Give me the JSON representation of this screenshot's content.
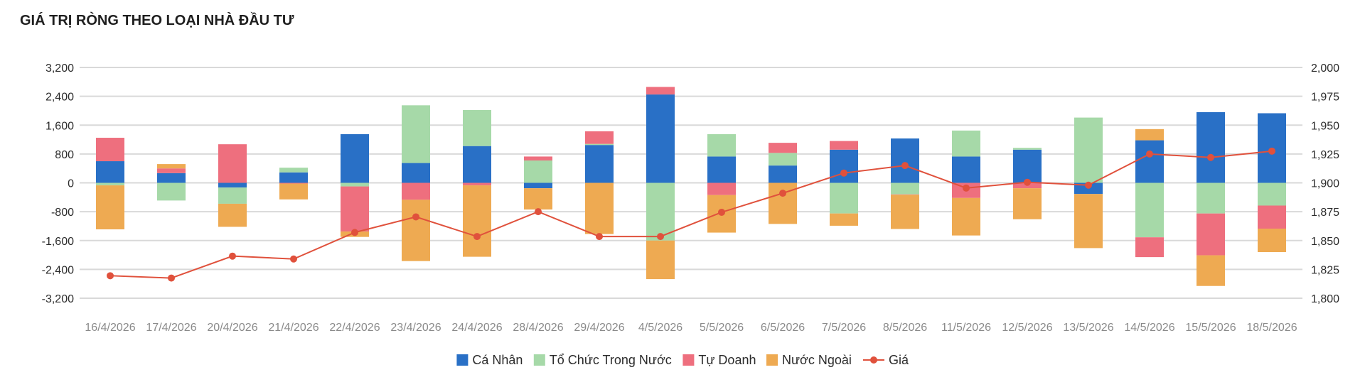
{
  "chart_data": {
    "type": "bar",
    "stacked": true,
    "title": "GIÁ TRỊ RÒNG THEO LOẠI NHÀ ĐẦU TƯ",
    "categories": [
      "16/4/2026",
      "17/4/2026",
      "20/4/2026",
      "21/4/2026",
      "22/4/2026",
      "23/4/2026",
      "24/4/2026",
      "28/4/2026",
      "29/4/2026",
      "4/5/2026",
      "5/5/2026",
      "6/5/2026",
      "7/5/2026",
      "8/5/2026",
      "11/5/2026",
      "12/5/2026",
      "13/5/2026",
      "14/5/2026",
      "15/5/2026",
      "18/5/2026"
    ],
    "y_left": {
      "ylim": [
        -3200,
        3200
      ],
      "ticks": [
        -3200,
        -2400,
        -1600,
        -800,
        0,
        800,
        1600,
        2400,
        3200
      ],
      "tick_labels": [
        "-3,200",
        "-2,400",
        "-1,600",
        "-800",
        "0",
        "800",
        "1,600",
        "2,400",
        "3,200"
      ]
    },
    "y_right": {
      "ylim": [
        1800,
        2000
      ],
      "ticks": [
        1800,
        1825,
        1850,
        1875,
        1900,
        1925,
        1950,
        1975,
        2000
      ],
      "tick_labels": [
        "1,800",
        "1,825",
        "1,850",
        "1,875",
        "1,900",
        "1,925",
        "1,950",
        "1,975",
        "2,000"
      ]
    },
    "grid": true,
    "legend_position": "bottom",
    "series": [
      {
        "name": "Cá Nhân",
        "type": "bar",
        "axis": "left",
        "color": "#2970c6",
        "values": [
          600,
          270,
          -130,
          290,
          1350,
          550,
          1020,
          -150,
          1050,
          2450,
          730,
          480,
          920,
          1230,
          730,
          920,
          -310,
          1180,
          1960,
          1930
        ]
      },
      {
        "name": "Tổ Chức Trong Nước",
        "type": "bar",
        "axis": "left",
        "color": "#a6d9a8",
        "values": [
          -70,
          -490,
          -450,
          130,
          -100,
          1600,
          1000,
          620,
          30,
          -1600,
          620,
          350,
          -850,
          -320,
          720,
          50,
          1810,
          -1510,
          -850,
          -630
        ]
      },
      {
        "name": "Tự Doanh",
        "type": "bar",
        "axis": "left",
        "color": "#ee6f7e",
        "values": [
          650,
          130,
          1070,
          -20,
          -1250,
          -470,
          -70,
          110,
          350,
          210,
          -340,
          280,
          240,
          -10,
          -420,
          -150,
          0,
          -550,
          -1160,
          -640
        ]
      },
      {
        "name": "Nước Ngoài",
        "type": "bar",
        "axis": "left",
        "color": "#eeaa52",
        "values": [
          -1220,
          120,
          -640,
          -440,
          -150,
          -1700,
          -1980,
          -590,
          -1420,
          -1070,
          -1040,
          -1140,
          -340,
          -950,
          -1040,
          -860,
          -1500,
          310,
          -850,
          -650
        ]
      },
      {
        "name": "Giá",
        "type": "line",
        "axis": "right",
        "color": "#e0513c",
        "values": [
          1819.5,
          1817.5,
          1836.5,
          1834,
          1857,
          1870.5,
          1853.5,
          1875,
          1853.5,
          1853.5,
          1874.5,
          1891,
          1908.5,
          1915,
          1895.5,
          1900.5,
          1898,
          1925,
          1922,
          1927.5
        ]
      }
    ]
  }
}
